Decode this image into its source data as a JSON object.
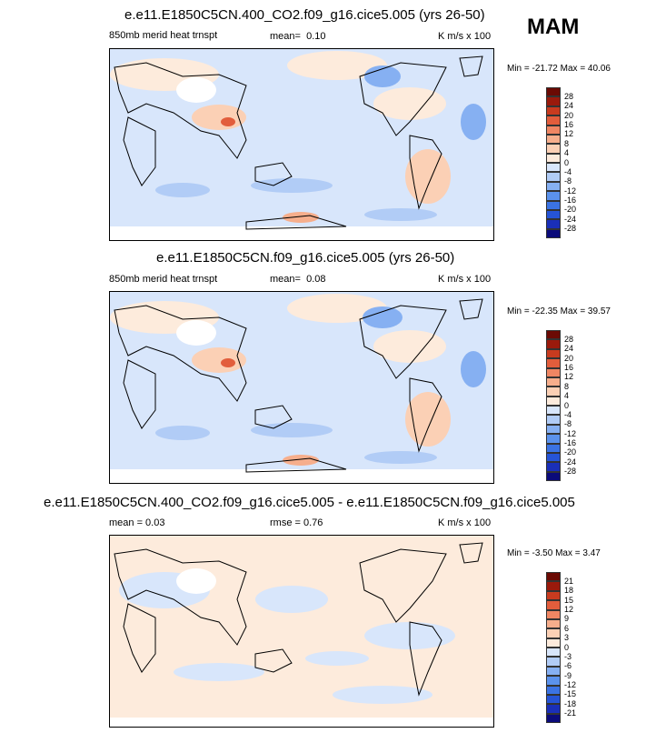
{
  "season": "MAM",
  "colors": {
    "scale": [
      "#0b0b7a",
      "#1a2fb8",
      "#2654d6",
      "#3b73e3",
      "#5b92ec",
      "#86b0f2",
      "#b1ccf6",
      "#d8e6fb",
      "#fdebdc",
      "#fbd0b5",
      "#f6ae8c",
      "#ef8663",
      "#e25d3c",
      "#c83b1f",
      "#9a1a0c",
      "#6b0a04"
    ]
  },
  "chart_data": [
    {
      "type": "heatmap",
      "title": "e.e11.E1850C5CN.400_CO2.f09_g16.cice5.005 (yrs 26-50)",
      "left_label": "850mb merid heat trnspt",
      "mean_label": "mean=",
      "mean": "0.10",
      "units": "K m/s x 100",
      "min_label": "Min = -21.72 Max =  40.06",
      "min": -21.72,
      "max": 40.06,
      "contour_levels": [
        "28",
        "24",
        "20",
        "16",
        "12",
        "8",
        "4",
        "0",
        "-4",
        "-8",
        "-12",
        "-16",
        "-20",
        "-24",
        "-28"
      ]
    },
    {
      "type": "heatmap",
      "title": "e.e11.E1850C5CN.f09_g16.cice5.005 (yrs 26-50)",
      "left_label": "850mb merid heat trnspt",
      "mean_label": "mean=",
      "mean": "0.08",
      "units": "K m/s x 100",
      "min_label": "Min = -22.35 Max =  39.57",
      "min": -22.35,
      "max": 39.57,
      "contour_levels": [
        "28",
        "24",
        "20",
        "16",
        "12",
        "8",
        "4",
        "0",
        "-4",
        "-8",
        "-12",
        "-16",
        "-20",
        "-24",
        "-28"
      ]
    },
    {
      "type": "heatmap",
      "title": "e.e11.E1850C5CN.400_CO2.f09_g16.cice5.005 - e.e11.E1850C5CN.f09_g16.cice5.005",
      "left_label": "mean =  0.03",
      "rmse_label": "rmse =   0.76",
      "units": "K m/s x 100",
      "min_label": "Min =  -3.50 Max =   3.47",
      "min": -3.5,
      "max": 3.47,
      "contour_levels": [
        "21",
        "18",
        "15",
        "12",
        "9",
        "6",
        "3",
        "0",
        "-3",
        "-6",
        "-9",
        "-12",
        "-15",
        "-18",
        "-21"
      ]
    }
  ]
}
